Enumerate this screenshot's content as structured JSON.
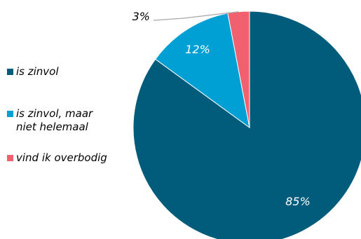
{
  "chart_data": {
    "type": "pie",
    "categories": [
      "is zinvol",
      "is zinvol, maar\nniet helemaal",
      "vind ik overbodig"
    ],
    "values": [
      85,
      12,
      3
    ],
    "data_labels": [
      "85%",
      "12%",
      "3%"
    ],
    "colors": [
      "#005c7a",
      "#009fd4",
      "#f0606e"
    ],
    "legend": "left",
    "start_angle_deg": 0,
    "direction": "clockwise"
  }
}
